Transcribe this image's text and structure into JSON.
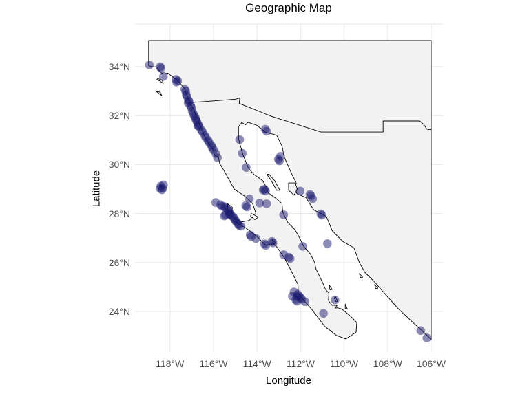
{
  "title": "Geographic Map",
  "axes": {
    "x_label": "Longitude",
    "y_label": "Latitude",
    "x_ticks": [
      {
        "value": -118,
        "label": "118°W"
      },
      {
        "value": -116,
        "label": "116°W"
      },
      {
        "value": -114,
        "label": "114°W"
      },
      {
        "value": -112,
        "label": "112°W"
      },
      {
        "value": -110,
        "label": "110°W"
      },
      {
        "value": -108,
        "label": "108°W"
      },
      {
        "value": -106,
        "label": "106°W"
      }
    ],
    "y_ticks": [
      {
        "value": 34,
        "label": "34°N"
      },
      {
        "value": 32,
        "label": "32°N"
      },
      {
        "value": 30,
        "label": "30°N"
      },
      {
        "value": 28,
        "label": "28°N"
      },
      {
        "value": 26,
        "label": "26°N"
      },
      {
        "value": 24,
        "label": "24°N"
      }
    ]
  },
  "style": {
    "point_color": "#191970",
    "point_opacity": 0.5,
    "point_radius": 6.3,
    "land_fill": "#F2F2F2",
    "outline_color": "#000000",
    "gridline_color": "#E7E7E7",
    "tick_label_color": "#4D4D4D"
  },
  "chart_data": {
    "type": "scatter",
    "title": "Geographic Map",
    "xlabel": "Longitude",
    "ylabel": "Latitude",
    "xlim": [
      -119.7,
      -105.4
    ],
    "ylim": [
      22.3,
      35.8
    ],
    "grid": "major only",
    "legend": "none",
    "points_lon_lat": [
      [
        -118.95,
        34.07
      ],
      [
        -118.45,
        34.0
      ],
      [
        -118.42,
        33.94
      ],
      [
        -118.3,
        33.6
      ],
      [
        -117.72,
        33.48
      ],
      [
        -117.65,
        33.42
      ],
      [
        -117.7,
        33.37
      ],
      [
        -117.32,
        33.08
      ],
      [
        -117.28,
        33.0
      ],
      [
        -117.25,
        32.85
      ],
      [
        -117.22,
        32.78
      ],
      [
        -117.15,
        32.63
      ],
      [
        -117.12,
        32.57
      ],
      [
        -117.17,
        32.52
      ],
      [
        -117.05,
        32.4
      ],
      [
        -117.02,
        32.33
      ],
      [
        -116.98,
        32.18
      ],
      [
        -116.93,
        32.08
      ],
      [
        -116.88,
        31.98
      ],
      [
        -116.83,
        31.91
      ],
      [
        -116.8,
        31.82
      ],
      [
        -116.76,
        31.75
      ],
      [
        -116.7,
        31.63
      ],
      [
        -116.66,
        31.56
      ],
      [
        -116.72,
        31.58
      ],
      [
        -116.55,
        31.4
      ],
      [
        -116.5,
        31.33
      ],
      [
        -116.4,
        31.18
      ],
      [
        -116.35,
        31.1
      ],
      [
        -116.25,
        30.98
      ],
      [
        -116.2,
        30.9
      ],
      [
        -116.1,
        30.78
      ],
      [
        -116.06,
        30.7
      ],
      [
        -116.0,
        30.6
      ],
      [
        -115.9,
        30.45
      ],
      [
        -115.82,
        30.28
      ],
      [
        -118.42,
        29.12
      ],
      [
        -118.3,
        29.17
      ],
      [
        -118.34,
        29.03
      ],
      [
        -118.37,
        28.97
      ],
      [
        -118.45,
        29.02
      ],
      [
        -115.9,
        28.45
      ],
      [
        -115.68,
        28.36
      ],
      [
        -115.62,
        28.3
      ],
      [
        -115.5,
        28.28
      ],
      [
        -115.44,
        28.22
      ],
      [
        -115.35,
        28.16
      ],
      [
        -115.3,
        28.1
      ],
      [
        -115.24,
        28.0
      ],
      [
        -115.2,
        27.94
      ],
      [
        -115.28,
        27.97
      ],
      [
        -115.45,
        27.95
      ],
      [
        -115.5,
        27.9
      ],
      [
        -115.1,
        27.86
      ],
      [
        -115.05,
        27.8
      ],
      [
        -115.0,
        27.72
      ],
      [
        -114.95,
        27.66
      ],
      [
        -114.88,
        27.58
      ],
      [
        -114.83,
        27.52
      ],
      [
        -114.74,
        27.48
      ],
      [
        -114.35,
        28.6
      ],
      [
        -114.52,
        28.32
      ],
      [
        -114.46,
        28.27
      ],
      [
        -114.32,
        27.12
      ],
      [
        -114.26,
        27.06
      ],
      [
        -114.05,
        26.98
      ],
      [
        -113.66,
        26.76
      ],
      [
        -113.6,
        26.7
      ],
      [
        -113.32,
        26.86
      ],
      [
        -113.27,
        26.8
      ],
      [
        -112.78,
        26.32
      ],
      [
        -112.54,
        26.22
      ],
      [
        -112.48,
        26.16
      ],
      [
        -112.3,
        24.8
      ],
      [
        -112.14,
        24.7
      ],
      [
        -112.08,
        24.64
      ],
      [
        -112.16,
        24.6
      ],
      [
        -112.22,
        24.48
      ],
      [
        -112.16,
        24.42
      ],
      [
        -112.0,
        24.56
      ],
      [
        -111.95,
        24.5
      ],
      [
        -112.38,
        24.62
      ],
      [
        -111.8,
        24.4
      ],
      [
        -110.95,
        23.92
      ],
      [
        -110.42,
        24.47
      ],
      [
        -114.8,
        31.02
      ],
      [
        -114.68,
        30.46
      ],
      [
        -114.5,
        29.88
      ],
      [
        -113.02,
        30.22
      ],
      [
        -112.97,
        30.15
      ],
      [
        -113.66,
        28.99
      ],
      [
        -113.61,
        28.92
      ],
      [
        -113.72,
        28.96
      ],
      [
        -113.56,
        28.4
      ],
      [
        -113.88,
        28.43
      ],
      [
        -112.78,
        27.95
      ],
      [
        -111.9,
        26.66
      ],
      [
        -110.77,
        26.77
      ],
      [
        -113.62,
        31.44
      ],
      [
        -113.56,
        31.36
      ],
      [
        -112.92,
        30.34
      ],
      [
        -112.02,
        28.92
      ],
      [
        -111.57,
        28.78
      ],
      [
        -111.52,
        28.72
      ],
      [
        -111.45,
        28.6
      ],
      [
        -111.07,
        27.99
      ],
      [
        -111.02,
        27.93
      ],
      [
        -106.48,
        23.22
      ],
      [
        -106.2,
        22.92
      ]
    ]
  },
  "map": {
    "mainland": [
      [
        -118.98,
        35.07
      ],
      [
        -118.98,
        34.04
      ],
      [
        -118.8,
        34.0
      ],
      [
        -118.6,
        33.99
      ],
      [
        -118.43,
        33.76
      ],
      [
        -118.28,
        33.7
      ],
      [
        -118.1,
        33.74
      ],
      [
        -117.88,
        33.59
      ],
      [
        -117.6,
        33.39
      ],
      [
        -117.32,
        33.09
      ],
      [
        -117.25,
        32.86
      ],
      [
        -117.12,
        32.6
      ],
      [
        -117.13,
        32.53
      ],
      [
        -116.9,
        32.25
      ],
      [
        -116.82,
        31.99
      ],
      [
        -116.63,
        31.86
      ],
      [
        -116.68,
        31.76
      ],
      [
        -116.6,
        31.57
      ],
      [
        -116.35,
        31.03
      ],
      [
        -116.02,
        30.6
      ],
      [
        -115.95,
        30.38
      ],
      [
        -115.78,
        30.3
      ],
      [
        -115.72,
        30.05
      ],
      [
        -115.52,
        29.75
      ],
      [
        -115.05,
        29.0
      ],
      [
        -114.55,
        28.7
      ],
      [
        -114.2,
        28.4
      ],
      [
        -114.05,
        28.0
      ],
      [
        -114.15,
        27.95
      ],
      [
        -114.35,
        27.72
      ],
      [
        -114.75,
        27.65
      ],
      [
        -115.06,
        27.85
      ],
      [
        -114.95,
        27.65
      ],
      [
        -114.5,
        27.4
      ],
      [
        -114.05,
        27.1
      ],
      [
        -113.6,
        26.7
      ],
      [
        -113.25,
        26.77
      ],
      [
        -113.1,
        26.65
      ],
      [
        -112.75,
        26.2
      ],
      [
        -112.4,
        25.6
      ],
      [
        -112.12,
        25.1
      ],
      [
        -112.1,
        24.75
      ],
      [
        -111.9,
        24.5
      ],
      [
        -111.5,
        24.1
      ],
      [
        -110.9,
        23.4
      ],
      [
        -110.35,
        23.02
      ],
      [
        -109.92,
        22.88
      ],
      [
        -109.45,
        23.15
      ],
      [
        -109.42,
        23.55
      ],
      [
        -109.7,
        23.8
      ],
      [
        -110.1,
        24.1
      ],
      [
        -110.3,
        24.15
      ],
      [
        -110.42,
        24.14
      ],
      [
        -110.32,
        24.25
      ],
      [
        -110.55,
        24.25
      ],
      [
        -110.72,
        24.45
      ],
      [
        -110.7,
        24.75
      ],
      [
        -110.85,
        24.9
      ],
      [
        -111.05,
        25.3
      ],
      [
        -111.3,
        25.75
      ],
      [
        -111.35,
        26.0
      ],
      [
        -111.55,
        26.35
      ],
      [
        -111.85,
        26.65
      ],
      [
        -112.1,
        27.1
      ],
      [
        -112.27,
        27.35
      ],
      [
        -112.6,
        27.65
      ],
      [
        -112.82,
        28.05
      ],
      [
        -112.85,
        28.4
      ],
      [
        -113.1,
        28.6
      ],
      [
        -113.5,
        28.85
      ],
      [
        -113.55,
        29.05
      ],
      [
        -113.75,
        29.35
      ],
      [
        -114.15,
        29.6
      ],
      [
        -114.4,
        29.85
      ],
      [
        -114.65,
        30.4
      ],
      [
        -114.85,
        31.05
      ],
      [
        -114.85,
        31.55
      ],
      [
        -114.7,
        31.72
      ],
      [
        -114.53,
        31.62
      ],
      [
        -114.42,
        31.73
      ],
      [
        -114.0,
        31.6
      ],
      [
        -113.62,
        31.32
      ],
      [
        -113.1,
        31.2
      ],
      [
        -112.85,
        30.75
      ],
      [
        -112.75,
        30.3
      ],
      [
        -112.4,
        29.6
      ],
      [
        -112.2,
        29.25
      ],
      [
        -112.3,
        28.95
      ],
      [
        -112.15,
        28.8
      ],
      [
        -111.75,
        28.65
      ],
      [
        -111.4,
        28.15
      ],
      [
        -110.95,
        27.95
      ],
      [
        -110.8,
        27.85
      ],
      [
        -110.55,
        27.3
      ],
      [
        -110.05,
        26.85
      ],
      [
        -109.55,
        26.6
      ],
      [
        -109.3,
        26.0
      ],
      [
        -109.05,
        25.6
      ],
      [
        -108.65,
        25.25
      ],
      [
        -108.05,
        24.65
      ],
      [
        -107.5,
        24.1
      ],
      [
        -106.9,
        23.6
      ],
      [
        -106.4,
        23.2
      ],
      [
        -106.0,
        22.85
      ],
      [
        -106.0,
        35.07
      ]
    ],
    "border_line": [
      [
        -117.13,
        32.53
      ],
      [
        -116.3,
        32.58
      ],
      [
        -115.0,
        32.67
      ],
      [
        -114.79,
        32.72
      ],
      [
        -114.82,
        32.5
      ],
      [
        -113.33,
        31.97
      ],
      [
        -111.07,
        31.33
      ],
      [
        -108.21,
        31.33
      ],
      [
        -108.21,
        31.78
      ],
      [
        -106.53,
        31.78
      ],
      [
        -106.35,
        31.65
      ],
      [
        -106.2,
        31.45
      ],
      [
        -106.0,
        31.42
      ]
    ],
    "islands": [
      [
        [
          -118.6,
          33.48
        ],
        [
          -118.3,
          33.32
        ],
        [
          -118.36,
          33.44
        ],
        [
          -118.55,
          33.52
        ]
      ],
      [
        [
          -118.62,
          32.98
        ],
        [
          -118.38,
          32.82
        ],
        [
          -118.46,
          32.96
        ]
      ],
      [
        [
          -115.35,
          28.4
        ],
        [
          -115.13,
          28.25
        ],
        [
          -115.18,
          27.95
        ],
        [
          -115.35,
          28.1
        ]
      ],
      [
        [
          -113.45,
          29.6
        ],
        [
          -113.2,
          29.35
        ],
        [
          -112.95,
          28.95
        ],
        [
          -113.1,
          28.95
        ],
        [
          -113.35,
          29.35
        ],
        [
          -113.55,
          29.6
        ]
      ],
      [
        [
          -112.55,
          29.25
        ],
        [
          -112.25,
          29.25
        ],
        [
          -112.15,
          29.0
        ],
        [
          -112.3,
          28.75
        ],
        [
          -112.55,
          28.95
        ]
      ],
      [
        [
          -110.4,
          24.6
        ],
        [
          -110.3,
          24.42
        ],
        [
          -110.38,
          24.4
        ],
        [
          -110.45,
          24.55
        ]
      ],
      [
        [
          -109.95,
          24.3
        ],
        [
          -109.85,
          24.1
        ],
        [
          -109.95,
          24.12
        ]
      ],
      [
        [
          -110.7,
          25.1
        ],
        [
          -110.55,
          24.9
        ],
        [
          -110.65,
          24.88
        ]
      ],
      [
        [
          -109.3,
          25.55
        ],
        [
          -109.15,
          25.4
        ],
        [
          -109.25,
          25.38
        ]
      ],
      [
        [
          -108.6,
          25.1
        ],
        [
          -108.45,
          24.95
        ],
        [
          -108.55,
          24.93
        ]
      ]
    ],
    "lagoons": [
      [
        [
          -114.25,
          28.0
        ],
        [
          -113.95,
          27.85
        ],
        [
          -114.1,
          27.75
        ],
        [
          -114.3,
          27.9
        ]
      ],
      [
        [
          -113.3,
          26.95
        ],
        [
          -113.15,
          26.8
        ],
        [
          -113.25,
          26.75
        ]
      ]
    ]
  }
}
